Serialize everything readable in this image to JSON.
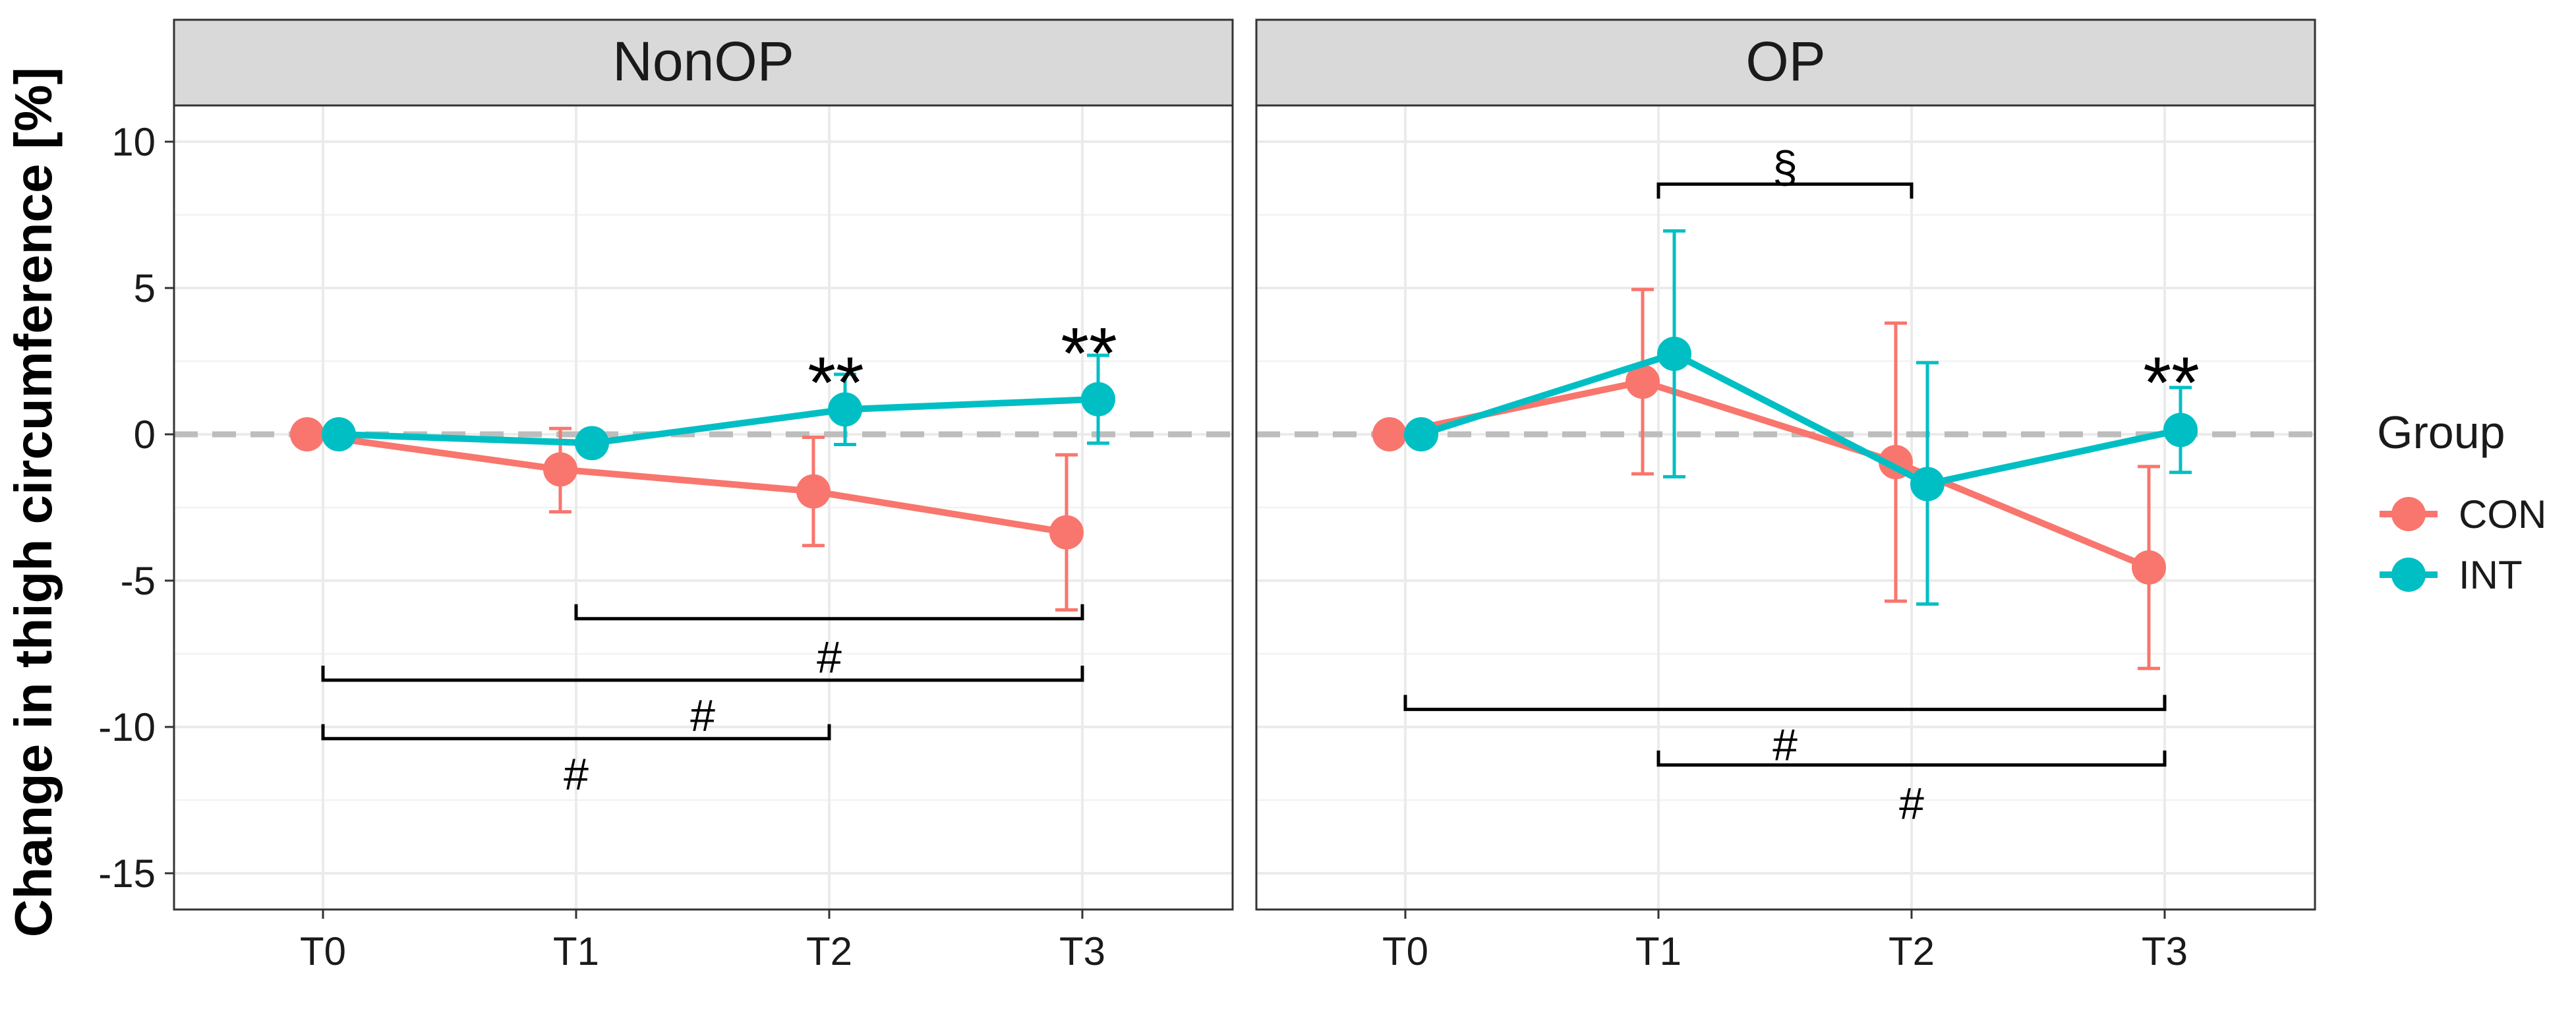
{
  "chart_data": {
    "type": "line",
    "ylabel": "Change in thigh circumference [%]",
    "xlabel": "",
    "categories": [
      "T0",
      "T1",
      "T2",
      "T3"
    ],
    "ylim": [
      -16,
      11
    ],
    "yticks": [
      10,
      5,
      0,
      -5,
      -10,
      -15
    ],
    "reference_line": 0,
    "legend": {
      "title": "Group",
      "position": "right",
      "entries": [
        {
          "name": "CON",
          "color": "#F8766D"
        },
        {
          "name": "INT",
          "color": "#00BFC4"
        }
      ]
    },
    "panels": [
      {
        "title": "NonOP",
        "series": [
          {
            "name": "CON",
            "color": "#F8766D",
            "values": [
              0,
              -1.2,
              -1.95,
              -3.35
            ],
            "error_low": [
              0,
              -2.65,
              -3.8,
              -6.0
            ],
            "error_high": [
              0,
              0.2,
              -0.1,
              -0.7
            ]
          },
          {
            "name": "INT",
            "color": "#00BFC4",
            "values": [
              0,
              -0.3,
              0.85,
              1.2
            ],
            "error_low": [
              0,
              -0.3,
              -0.35,
              -0.3
            ],
            "error_high": [
              0,
              -0.3,
              2.05,
              2.7
            ]
          }
        ],
        "star_annotations": [
          {
            "x": "T2",
            "y": 2.6,
            "label": "**"
          },
          {
            "x": "T3",
            "y": 3.6,
            "label": "**"
          }
        ],
        "brackets": [
          {
            "x1": "T1",
            "x2": "T3",
            "y": -6.3,
            "dir": "up",
            "label": "#",
            "label_y": -7.6
          },
          {
            "x1": "T0",
            "x2": "T3",
            "y": -8.4,
            "dir": "up",
            "label": "#",
            "label_y": -9.6
          },
          {
            "x1": "T0",
            "x2": "T2",
            "y": -10.4,
            "dir": "up",
            "label": "#",
            "label_y": -11.6
          }
        ]
      },
      {
        "title": "OP",
        "series": [
          {
            "name": "CON",
            "color": "#F8766D",
            "values": [
              0,
              1.8,
              -0.95,
              -4.55
            ],
            "error_low": [
              0,
              -1.35,
              -5.7,
              -8.0
            ],
            "error_high": [
              0,
              4.95,
              3.8,
              -1.1
            ]
          },
          {
            "name": "INT",
            "color": "#00BFC4",
            "values": [
              0,
              2.75,
              -1.7,
              0.15
            ],
            "error_low": [
              0,
              -1.45,
              -5.8,
              -1.3
            ],
            "error_high": [
              0,
              6.95,
              2.45,
              1.6
            ]
          }
        ],
        "star_annotations": [
          {
            "x": "T3",
            "y": 2.6,
            "label": "**"
          }
        ],
        "brackets": [
          {
            "x1": "T1",
            "x2": "T2",
            "y": 8.55,
            "dir": "down",
            "label": "§",
            "label_y": 9.15
          },
          {
            "x1": "T0",
            "x2": "T3",
            "y": -9.4,
            "dir": "up",
            "label": "#",
            "label_y": -10.6
          },
          {
            "x1": "T1",
            "x2": "T3",
            "y": -11.3,
            "dir": "up",
            "label": "#",
            "label_y": -12.6
          }
        ]
      }
    ]
  }
}
